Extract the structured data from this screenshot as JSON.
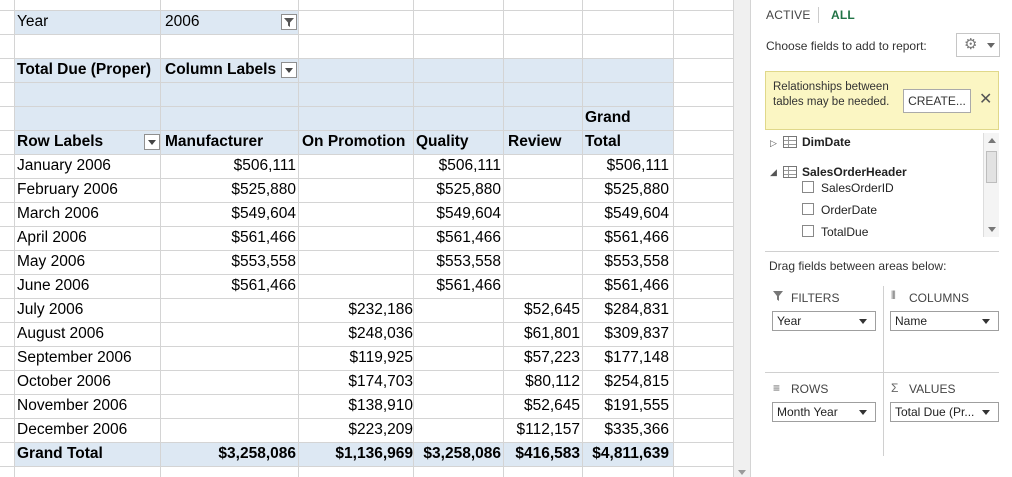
{
  "filter": {
    "field": "Year",
    "value": "2006"
  },
  "pivot": {
    "value_field": "Total Due (Proper)",
    "column_labels": "Column Labels",
    "row_labels": "Row Labels",
    "columns": [
      "Manufacturer",
      "On Promotion",
      "Quality",
      "Review",
      "Grand",
      "Total"
    ],
    "rows": [
      {
        "label": "January 2006",
        "manufacturer": "$506,111",
        "on_promotion": "",
        "quality": "$506,111",
        "review": "",
        "grand_total": "$506,111"
      },
      {
        "label": "February 2006",
        "manufacturer": "$525,880",
        "on_promotion": "",
        "quality": "$525,880",
        "review": "",
        "grand_total": "$525,880"
      },
      {
        "label": "March 2006",
        "manufacturer": "$549,604",
        "on_promotion": "",
        "quality": "$549,604",
        "review": "",
        "grand_total": "$549,604"
      },
      {
        "label": "April 2006",
        "manufacturer": "$561,466",
        "on_promotion": "",
        "quality": "$561,466",
        "review": "",
        "grand_total": "$561,466"
      },
      {
        "label": "May 2006",
        "manufacturer": "$553,558",
        "on_promotion": "",
        "quality": "$553,558",
        "review": "",
        "grand_total": "$553,558"
      },
      {
        "label": "June 2006",
        "manufacturer": "$561,466",
        "on_promotion": "",
        "quality": "$561,466",
        "review": "",
        "grand_total": "$561,466"
      },
      {
        "label": "July 2006",
        "manufacturer": "",
        "on_promotion": "$232,186",
        "quality": "",
        "review": "$52,645",
        "grand_total": "$284,831"
      },
      {
        "label": "August 2006",
        "manufacturer": "",
        "on_promotion": "$248,036",
        "quality": "",
        "review": "$61,801",
        "grand_total": "$309,837"
      },
      {
        "label": "September 2006",
        "manufacturer": "",
        "on_promotion": "$119,925",
        "quality": "",
        "review": "$57,223",
        "grand_total": "$177,148"
      },
      {
        "label": "October 2006",
        "manufacturer": "",
        "on_promotion": "$174,703",
        "quality": "",
        "review": "$80,112",
        "grand_total": "$254,815"
      },
      {
        "label": "November 2006",
        "manufacturer": "",
        "on_promotion": "$138,910",
        "quality": "",
        "review": "$52,645",
        "grand_total": "$191,555"
      },
      {
        "label": "December 2006",
        "manufacturer": "",
        "on_promotion": "$223,209",
        "quality": "",
        "review": "$112,157",
        "grand_total": "$335,366"
      }
    ],
    "grand_total": {
      "label": "Grand Total",
      "manufacturer": "$3,258,086",
      "on_promotion": "$1,136,969",
      "quality": "$3,258,086",
      "review": "$416,583",
      "grand_total": "$4,811,639"
    }
  },
  "field_pane": {
    "tabs": [
      "ACTIVE",
      "ALL"
    ],
    "choose_label": "Choose fields to add to report:",
    "gear_icon": "gear-icon",
    "notice": {
      "message": "Relationships between tables may be needed.",
      "create_label": "CREATE...",
      "close_icon": "close-icon"
    },
    "tables": [
      {
        "name": "DimDate",
        "expanded": false,
        "fields": []
      },
      {
        "name": "SalesOrderHeader",
        "expanded": true,
        "fields": [
          "SalesOrderID",
          "OrderDate",
          "TotalDue"
        ]
      }
    ],
    "drag_label": "Drag fields between areas below:",
    "areas": {
      "filters": {
        "title": "FILTERS",
        "field": "Year",
        "icon": "filter-icon"
      },
      "columns": {
        "title": "COLUMNS",
        "field": "Name",
        "icon": "columns-icon"
      },
      "rows": {
        "title": "ROWS",
        "field": "Month Year",
        "icon": "rows-icon"
      },
      "values": {
        "title": "VALUES",
        "field": "Total Due (Pr...",
        "icon": "sigma-icon"
      }
    }
  },
  "colors": {
    "pivot_band": "#dde8f3",
    "notice_bg": "#fbf6c3",
    "tab_active": "#217346"
  }
}
